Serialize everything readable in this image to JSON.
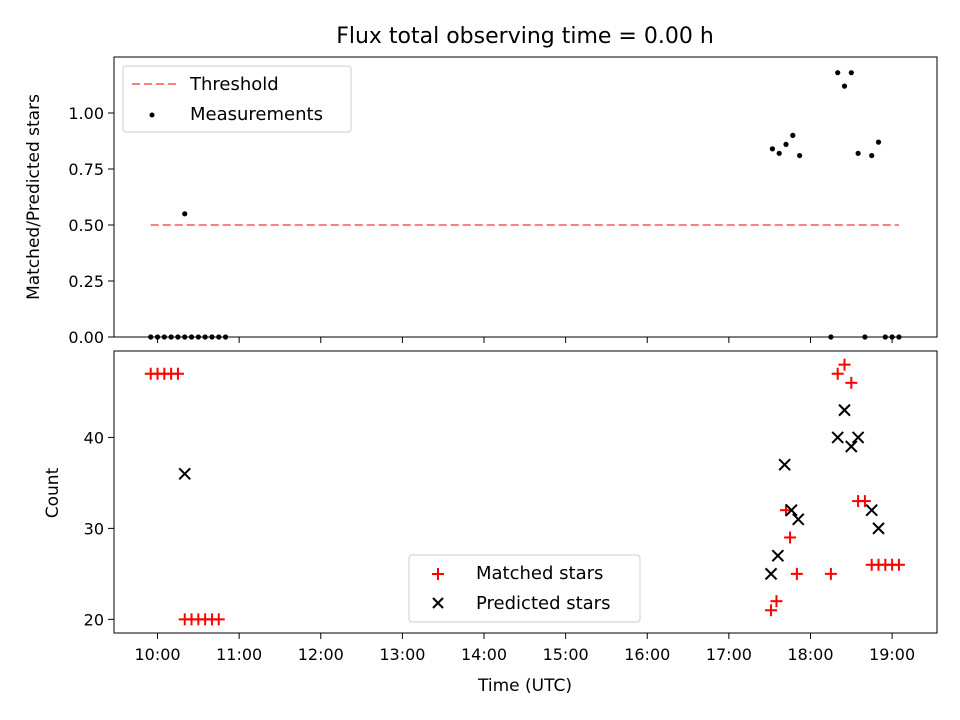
{
  "chart_data": [
    {
      "type": "scatter",
      "title": "Flux total observing time = 0.00 h",
      "xlabel": "",
      "ylabel": "Matched/Predicted stars",
      "xlim": [
        "09:28",
        "19:33"
      ],
      "ylim": [
        0,
        1.25
      ],
      "yticks": [
        "0.00",
        "0.25",
        "0.50",
        "0.75",
        "1.00"
      ],
      "ytick_values": [
        0,
        0.25,
        0.5,
        0.75,
        1.0
      ],
      "legend_position": "top-left",
      "threshold": {
        "name": "Threshold",
        "color": "#ff7f7f",
        "y": 0.5,
        "x_start": "09:55",
        "x_end": "19:05"
      },
      "series": [
        {
          "name": "Measurements",
          "color": "#000000",
          "marker": "dot",
          "x": [
            "09:55",
            "10:00",
            "10:05",
            "10:10",
            "10:15",
            "10:20",
            "10:20",
            "10:25",
            "10:30",
            "10:35",
            "10:40",
            "10:45",
            "10:50",
            "17:32",
            "17:37",
            "17:42",
            "17:47",
            "17:52",
            "18:15",
            "18:20",
            "18:25",
            "18:30",
            "18:35",
            "18:40",
            "18:45",
            "18:50",
            "18:55",
            "19:00",
            "19:05"
          ],
          "y": [
            0,
            0,
            0,
            0,
            0,
            0,
            0.55,
            0,
            0,
            0,
            0,
            0,
            0,
            0.84,
            0.82,
            0.86,
            0.9,
            0.81,
            0,
            1.18,
            1.12,
            1.18,
            0.82,
            0,
            0.81,
            0.87,
            0,
            0,
            0
          ]
        }
      ]
    },
    {
      "type": "scatter",
      "title": "",
      "xlabel": "Time (UTC)",
      "ylabel": "Count",
      "xlim": [
        "09:28",
        "19:33"
      ],
      "ylim": [
        18.5,
        49.5
      ],
      "xticks": [
        "10:00",
        "11:00",
        "12:00",
        "13:00",
        "14:00",
        "15:00",
        "16:00",
        "17:00",
        "18:00",
        "19:00"
      ],
      "yticks": [
        "20",
        "30",
        "40"
      ],
      "ytick_values": [
        20,
        30,
        40
      ],
      "legend_position": "lower-center",
      "series": [
        {
          "name": "Matched stars",
          "color": "#ff0000",
          "marker": "plus",
          "x": [
            "09:55",
            "10:00",
            "10:05",
            "10:10",
            "10:15",
            "10:20",
            "10:25",
            "10:30",
            "10:35",
            "10:40",
            "10:45",
            "17:31",
            "17:35",
            "17:42",
            "17:45",
            "17:50",
            "18:15",
            "18:20",
            "18:25",
            "18:30",
            "18:35",
            "18:40",
            "18:45",
            "18:50",
            "18:55",
            "19:00",
            "19:05"
          ],
          "y": [
            47,
            47,
            47,
            47,
            47,
            20,
            20,
            20,
            20,
            20,
            20,
            21,
            22,
            32,
            29,
            25,
            25,
            47,
            48,
            46,
            33,
            33,
            26,
            26,
            26,
            26,
            26
          ]
        },
        {
          "name": "Predicted stars",
          "color": "#000000",
          "marker": "x",
          "x": [
            "10:20",
            "17:31",
            "17:36",
            "17:41",
            "17:46",
            "17:51",
            "18:20",
            "18:25",
            "18:30",
            "18:35",
            "18:45",
            "18:50"
          ],
          "y": [
            36,
            25,
            27,
            37,
            32,
            31,
            40,
            43,
            39,
            40,
            32,
            30
          ]
        }
      ]
    }
  ]
}
